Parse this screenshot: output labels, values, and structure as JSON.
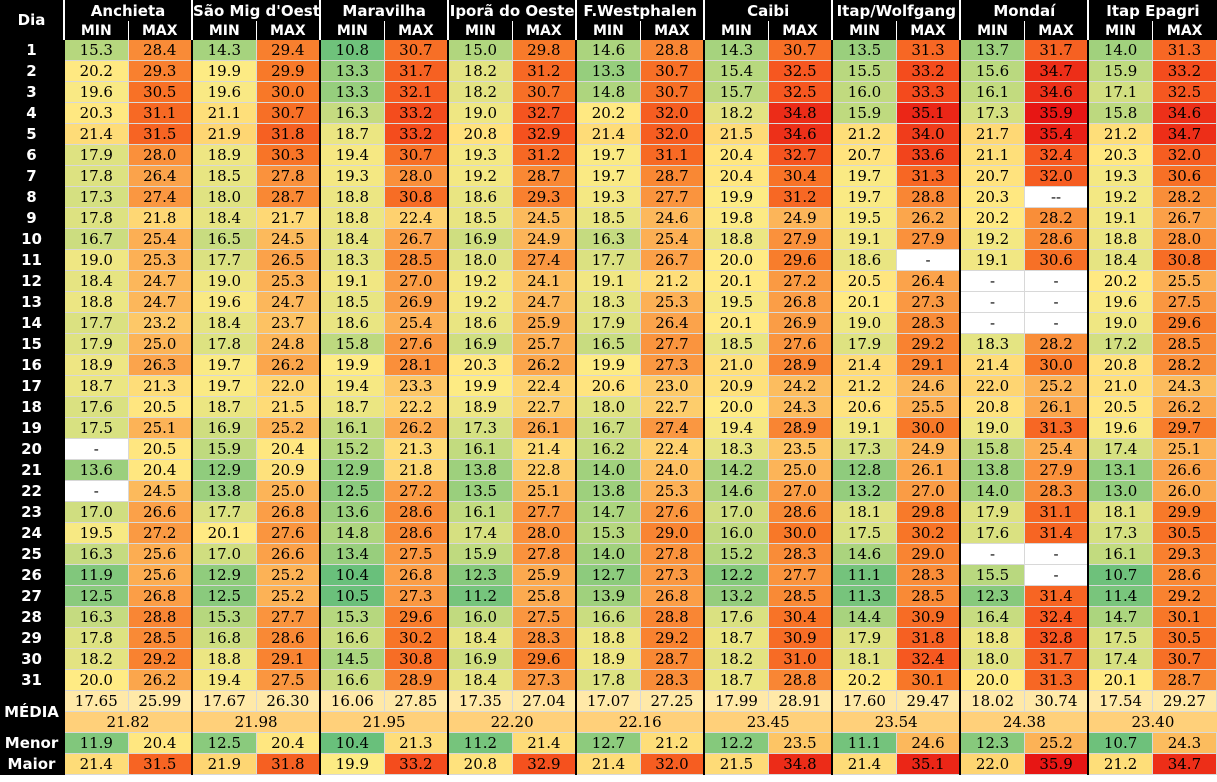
{
  "table": {
    "corner_label": "Dia",
    "stations": [
      "Anchieta",
      "São Mig d'Oeste",
      "Maravilha",
      "Iporã do Oeste",
      "F.Westphalen",
      "Caibi",
      "Itap/Wolfgang",
      "Mondaí",
      "Itap Epagri"
    ],
    "sub_headers": [
      "MIN",
      "MAX"
    ],
    "rows": [
      {
        "day": "1",
        "values": [
          "15.3",
          "28.4",
          "14.3",
          "29.4",
          "10.8",
          "30.7",
          "15.0",
          "29.8",
          "14.6",
          "28.8",
          "14.3",
          "30.7",
          "13.5",
          "31.3",
          "13.7",
          "31.7",
          "14.0",
          "31.3"
        ]
      },
      {
        "day": "2",
        "values": [
          "20.2",
          "29.3",
          "19.9",
          "29.9",
          "13.3",
          "31.7",
          "18.2",
          "31.2",
          "13.3",
          "30.7",
          "15.4",
          "32.5",
          "15.5",
          "33.2",
          "15.6",
          "34.7",
          "15.9",
          "33.2"
        ]
      },
      {
        "day": "3",
        "values": [
          "19.6",
          "30.5",
          "19.6",
          "30.0",
          "13.3",
          "32.1",
          "18.2",
          "30.7",
          "14.8",
          "30.7",
          "15.7",
          "32.5",
          "16.0",
          "33.3",
          "16.1",
          "34.6",
          "17.1",
          "32.5"
        ]
      },
      {
        "day": "4",
        "values": [
          "20.3",
          "31.1",
          "21.1",
          "30.7",
          "16.3",
          "33.2",
          "19.0",
          "32.7",
          "20.2",
          "32.0",
          "18.2",
          "34.8",
          "15.9",
          "35.1",
          "17.3",
          "35.9",
          "15.8",
          "34.6"
        ]
      },
      {
        "day": "5",
        "values": [
          "21.4",
          "31.5",
          "21.9",
          "31.8",
          "18.7",
          "33.2",
          "20.8",
          "32.9",
          "21.4",
          "32.0",
          "21.5",
          "34.6",
          "21.2",
          "34.0",
          "21.7",
          "35.4",
          "21.2",
          "34.7"
        ]
      },
      {
        "day": "6",
        "values": [
          "17.9",
          "28.0",
          "18.9",
          "30.3",
          "19.4",
          "30.7",
          "19.3",
          "31.2",
          "19.7",
          "31.1",
          "20.4",
          "32.7",
          "20.7",
          "33.6",
          "21.1",
          "32.4",
          "20.3",
          "32.0"
        ]
      },
      {
        "day": "7",
        "values": [
          "17.8",
          "26.4",
          "18.5",
          "27.8",
          "19.3",
          "28.0",
          "19.2",
          "28.7",
          "19.7",
          "28.7",
          "20.4",
          "30.4",
          "19.7",
          "31.3",
          "20.7",
          "32.0",
          "19.3",
          "30.6"
        ]
      },
      {
        "day": "8",
        "values": [
          "17.3",
          "27.4",
          "18.0",
          "28.7",
          "18.8",
          "30.8",
          "18.6",
          "29.3",
          "19.3",
          "27.7",
          "19.9",
          "31.2",
          "19.7",
          "28.8",
          "20.3",
          "--",
          "19.2",
          "28.2"
        ]
      },
      {
        "day": "9",
        "values": [
          "17.8",
          "21.8",
          "18.4",
          "21.7",
          "18.8",
          "22.4",
          "18.5",
          "24.5",
          "18.5",
          "24.6",
          "19.8",
          "24.9",
          "19.5",
          "26.2",
          "20.2",
          "28.2",
          "19.1",
          "26.7"
        ]
      },
      {
        "day": "10",
        "values": [
          "16.7",
          "25.4",
          "16.5",
          "24.5",
          "18.4",
          "26.7",
          "16.9",
          "24.9",
          "16.3",
          "25.4",
          "18.8",
          "27.9",
          "19.1",
          "27.9",
          "19.2",
          "28.6",
          "18.8",
          "28.0"
        ]
      },
      {
        "day": "11",
        "values": [
          "19.0",
          "25.3",
          "17.7",
          "26.5",
          "18.3",
          "28.5",
          "18.0",
          "27.4",
          "17.7",
          "26.7",
          "20.0",
          "29.6",
          "18.6",
          "-",
          "19.1",
          "30.6",
          "18.4",
          "30.8"
        ]
      },
      {
        "day": "12",
        "values": [
          "18.4",
          "24.7",
          "19.0",
          "25.3",
          "19.1",
          "27.0",
          "19.2",
          "24.1",
          "19.1",
          "21.2",
          "20.1",
          "27.2",
          "20.5",
          "26.4",
          "-",
          "-",
          "20.2",
          "25.5"
        ]
      },
      {
        "day": "13",
        "values": [
          "18.8",
          "24.7",
          "19.6",
          "24.7",
          "18.5",
          "26.9",
          "19.2",
          "24.7",
          "18.3",
          "25.3",
          "19.5",
          "26.8",
          "20.1",
          "27.3",
          "-",
          "-",
          "19.6",
          "27.5"
        ]
      },
      {
        "day": "14",
        "values": [
          "17.7",
          "23.2",
          "18.4",
          "23.7",
          "18.6",
          "25.4",
          "18.6",
          "25.9",
          "17.9",
          "26.4",
          "20.1",
          "26.9",
          "19.0",
          "28.3",
          "-",
          "-",
          "19.0",
          "29.6"
        ]
      },
      {
        "day": "15",
        "values": [
          "17.9",
          "25.0",
          "17.8",
          "24.8",
          "15.8",
          "27.6",
          "16.9",
          "25.7",
          "16.5",
          "27.7",
          "18.5",
          "27.6",
          "17.9",
          "29.2",
          "18.3",
          "28.2",
          "17.2",
          "28.5"
        ]
      },
      {
        "day": "16",
        "values": [
          "18.9",
          "26.3",
          "19.7",
          "26.2",
          "19.9",
          "28.1",
          "20.3",
          "26.2",
          "19.9",
          "27.3",
          "21.0",
          "28.9",
          "21.4",
          "29.1",
          "21.4",
          "30.0",
          "20.8",
          "28.2"
        ]
      },
      {
        "day": "17",
        "values": [
          "18.7",
          "21.3",
          "19.7",
          "22.0",
          "19.4",
          "23.3",
          "19.9",
          "22.4",
          "20.6",
          "23.0",
          "20.9",
          "24.2",
          "21.2",
          "24.6",
          "22.0",
          "25.2",
          "21.0",
          "24.3"
        ]
      },
      {
        "day": "18",
        "values": [
          "17.6",
          "20.5",
          "18.7",
          "21.5",
          "18.7",
          "22.2",
          "18.9",
          "22.7",
          "18.0",
          "22.7",
          "20.0",
          "24.3",
          "20.6",
          "25.5",
          "20.8",
          "26.1",
          "20.5",
          "26.2"
        ]
      },
      {
        "day": "19",
        "values": [
          "17.5",
          "25.1",
          "16.9",
          "25.2",
          "16.1",
          "26.2",
          "17.3",
          "26.1",
          "16.7",
          "27.4",
          "19.4",
          "28.9",
          "19.1",
          "30.0",
          "19.0",
          "31.3",
          "19.6",
          "29.7"
        ]
      },
      {
        "day": "20",
        "values": [
          "-",
          "20.5",
          "15.9",
          "20.4",
          "15.2",
          "21.3",
          "16.1",
          "21.4",
          "16.2",
          "22.4",
          "18.3",
          "23.5",
          "17.3",
          "24.9",
          "15.8",
          "25.4",
          "17.4",
          "25.1"
        ]
      },
      {
        "day": "21",
        "values": [
          "13.6",
          "20.4",
          "12.9",
          "20.9",
          "12.9",
          "21.8",
          "13.8",
          "22.8",
          "14.0",
          "24.0",
          "14.2",
          "25.0",
          "12.8",
          "26.1",
          "13.8",
          "27.9",
          "13.1",
          "26.6"
        ]
      },
      {
        "day": "22",
        "values": [
          "-",
          "24.5",
          "13.8",
          "25.0",
          "12.5",
          "27.2",
          "13.5",
          "25.1",
          "13.8",
          "25.3",
          "14.6",
          "27.0",
          "13.2",
          "27.0",
          "14.0",
          "28.3",
          "13.0",
          "26.0"
        ]
      },
      {
        "day": "23",
        "values": [
          "17.0",
          "26.6",
          "17.7",
          "26.8",
          "13.6",
          "28.6",
          "16.1",
          "27.7",
          "14.7",
          "27.6",
          "17.0",
          "28.6",
          "18.1",
          "29.8",
          "17.9",
          "31.1",
          "18.1",
          "29.9"
        ]
      },
      {
        "day": "24",
        "values": [
          "19.5",
          "27.2",
          "20.1",
          "27.6",
          "14.8",
          "28.6",
          "17.4",
          "28.0",
          "15.3",
          "29.0",
          "16.0",
          "30.0",
          "17.5",
          "30.2",
          "17.6",
          "31.4",
          "17.3",
          "30.5"
        ]
      },
      {
        "day": "25",
        "values": [
          "16.3",
          "25.6",
          "17.0",
          "26.6",
          "13.4",
          "27.5",
          "15.9",
          "27.8",
          "14.0",
          "27.8",
          "15.2",
          "28.3",
          "14.6",
          "29.0",
          "-",
          "-",
          "16.1",
          "29.3"
        ]
      },
      {
        "day": "26",
        "values": [
          "11.9",
          "25.6",
          "12.9",
          "25.2",
          "10.4",
          "26.8",
          "12.3",
          "25.9",
          "12.7",
          "27.3",
          "12.2",
          "27.7",
          "11.1",
          "28.3",
          "15.5",
          "-",
          "10.7",
          "28.6"
        ]
      },
      {
        "day": "27",
        "values": [
          "12.5",
          "26.8",
          "12.5",
          "25.2",
          "10.5",
          "27.3",
          "11.2",
          "25.8",
          "13.9",
          "26.8",
          "13.2",
          "28.5",
          "11.3",
          "28.5",
          "12.3",
          "31.4",
          "11.4",
          "29.2"
        ]
      },
      {
        "day": "28",
        "values": [
          "16.3",
          "28.8",
          "15.3",
          "27.7",
          "15.3",
          "29.6",
          "16.0",
          "27.5",
          "16.6",
          "28.8",
          "17.6",
          "30.4",
          "14.4",
          "30.9",
          "16.4",
          "32.4",
          "14.7",
          "30.1"
        ]
      },
      {
        "day": "29",
        "values": [
          "17.8",
          "28.5",
          "16.8",
          "28.6",
          "16.6",
          "30.2",
          "18.4",
          "28.3",
          "18.8",
          "29.2",
          "18.7",
          "30.9",
          "17.9",
          "31.8",
          "18.8",
          "32.8",
          "17.5",
          "30.5"
        ]
      },
      {
        "day": "30",
        "values": [
          "18.2",
          "29.2",
          "18.8",
          "29.1",
          "14.5",
          "30.8",
          "16.9",
          "29.6",
          "18.9",
          "28.7",
          "18.2",
          "31.0",
          "18.1",
          "32.4",
          "18.0",
          "31.7",
          "17.4",
          "30.7"
        ]
      },
      {
        "day": "31",
        "values": [
          "20.0",
          "26.2",
          "19.4",
          "27.5",
          "16.6",
          "28.9",
          "18.4",
          "27.3",
          "17.8",
          "28.3",
          "18.7",
          "28.8",
          "20.2",
          "30.1",
          "20.0",
          "31.3",
          "20.1",
          "28.7"
        ]
      }
    ],
    "media_label": "MÉDIA",
    "media_values": [
      "17.65",
      "25.99",
      "17.67",
      "26.30",
      "16.06",
      "27.85",
      "17.35",
      "27.04",
      "17.07",
      "27.25",
      "17.99",
      "28.91",
      "17.60",
      "29.47",
      "18.02",
      "30.74",
      "17.54",
      "29.27"
    ],
    "media_means": [
      "21.82",
      "21.98",
      "21.95",
      "22.20",
      "22.16",
      "23.45",
      "23.54",
      "24.38",
      "23.40"
    ],
    "menor_label": "Menor",
    "menor_values": [
      "11.9",
      "20.4",
      "12.5",
      "20.4",
      "10.4",
      "21.3",
      "11.2",
      "21.4",
      "12.7",
      "21.2",
      "12.2",
      "23.5",
      "11.1",
      "24.6",
      "12.3",
      "25.2",
      "10.7",
      "24.3"
    ],
    "maior_label": "Maior",
    "maior_values": [
      "21.4",
      "31.5",
      "21.9",
      "31.8",
      "19.9",
      "33.2",
      "20.8",
      "32.9",
      "21.4",
      "32.0",
      "21.5",
      "34.8",
      "21.4",
      "35.1",
      "22.0",
      "35.9",
      "21.2",
      "34.7"
    ]
  }
}
